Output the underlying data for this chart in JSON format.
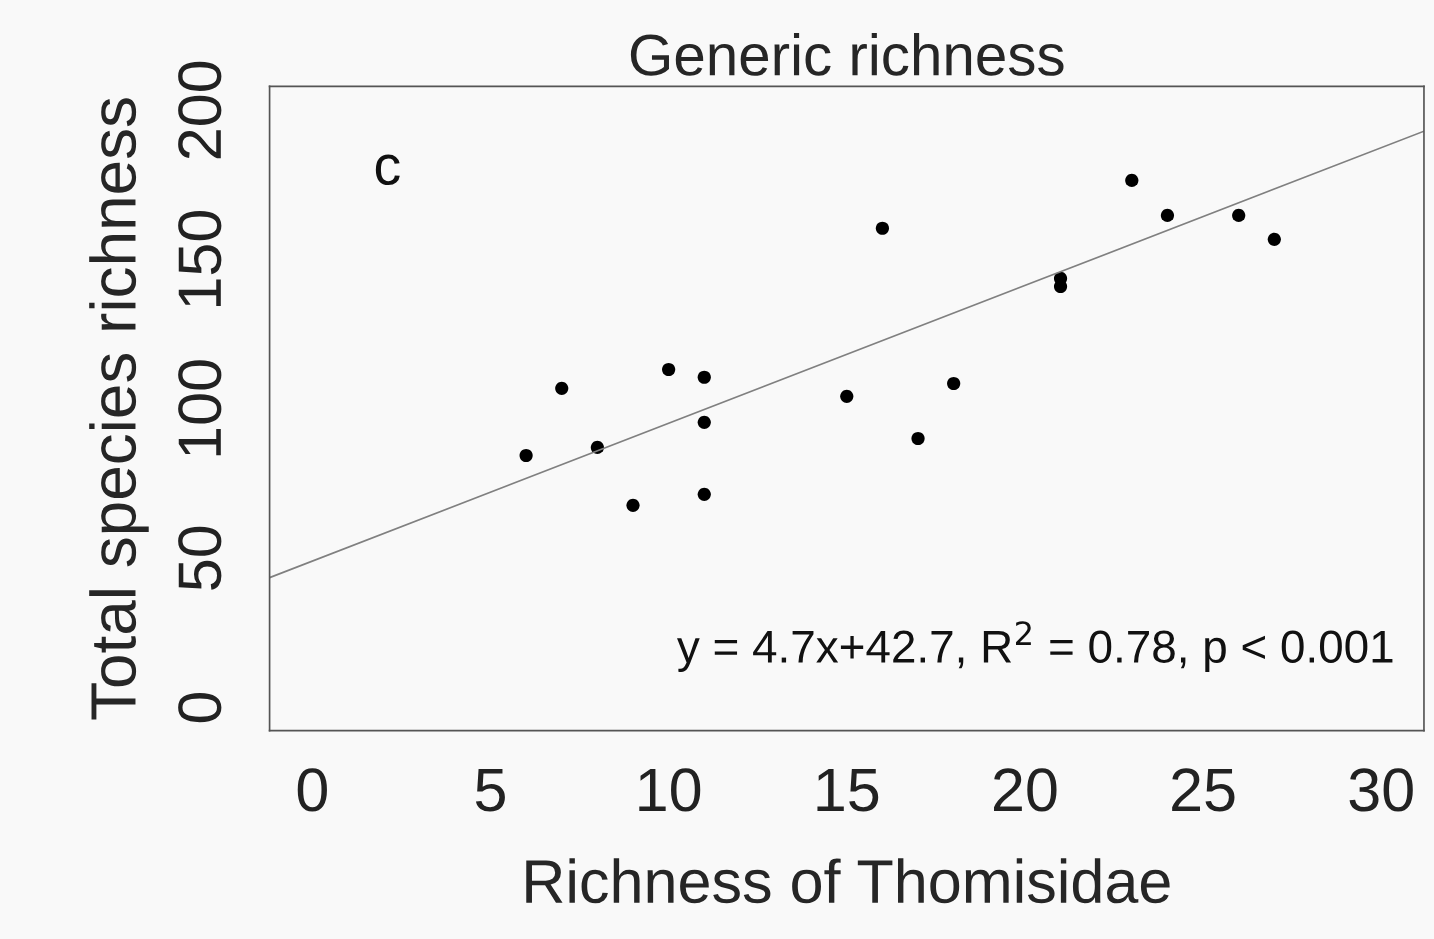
{
  "chart_data": {
    "type": "scatter",
    "title": "Generic richness",
    "xlabel": "Richness of Thomisidae",
    "ylabel": "Total species richness",
    "xlim": [
      -1.2,
      31.2
    ],
    "ylim": [
      -7.7,
      208
    ],
    "xticks": [
      0,
      5,
      10,
      15,
      20,
      25,
      30
    ],
    "yticks": [
      0,
      50,
      100,
      150,
      200
    ],
    "grid": false,
    "legend": false,
    "series": [
      {
        "marker": "circle",
        "color": "#000000",
        "x": [
          6,
          7,
          8,
          9,
          10,
          11,
          11,
          11,
          15,
          16,
          17,
          18,
          21,
          21,
          23,
          24,
          26,
          27
        ],
        "values": [
          84.4,
          106.9,
          87.1,
          67.7,
          113.2,
          110.6,
          95.5,
          71.4,
          104.2,
          160.5,
          90.1,
          108.5,
          143.7,
          141.0,
          176.5,
          164.8,
          164.8,
          156.8
        ]
      },
      {
        "type": "line",
        "marker": "none",
        "color": "#808080",
        "line_style": "solid",
        "x": [
          -1.2,
          31.2
        ],
        "values": [
          43.5,
          193
        ]
      }
    ],
    "annotations": [
      "c",
      "y = 4.7x+42.7, R$^{2}$ = 0.78, p < 0.001"
    ]
  }
}
